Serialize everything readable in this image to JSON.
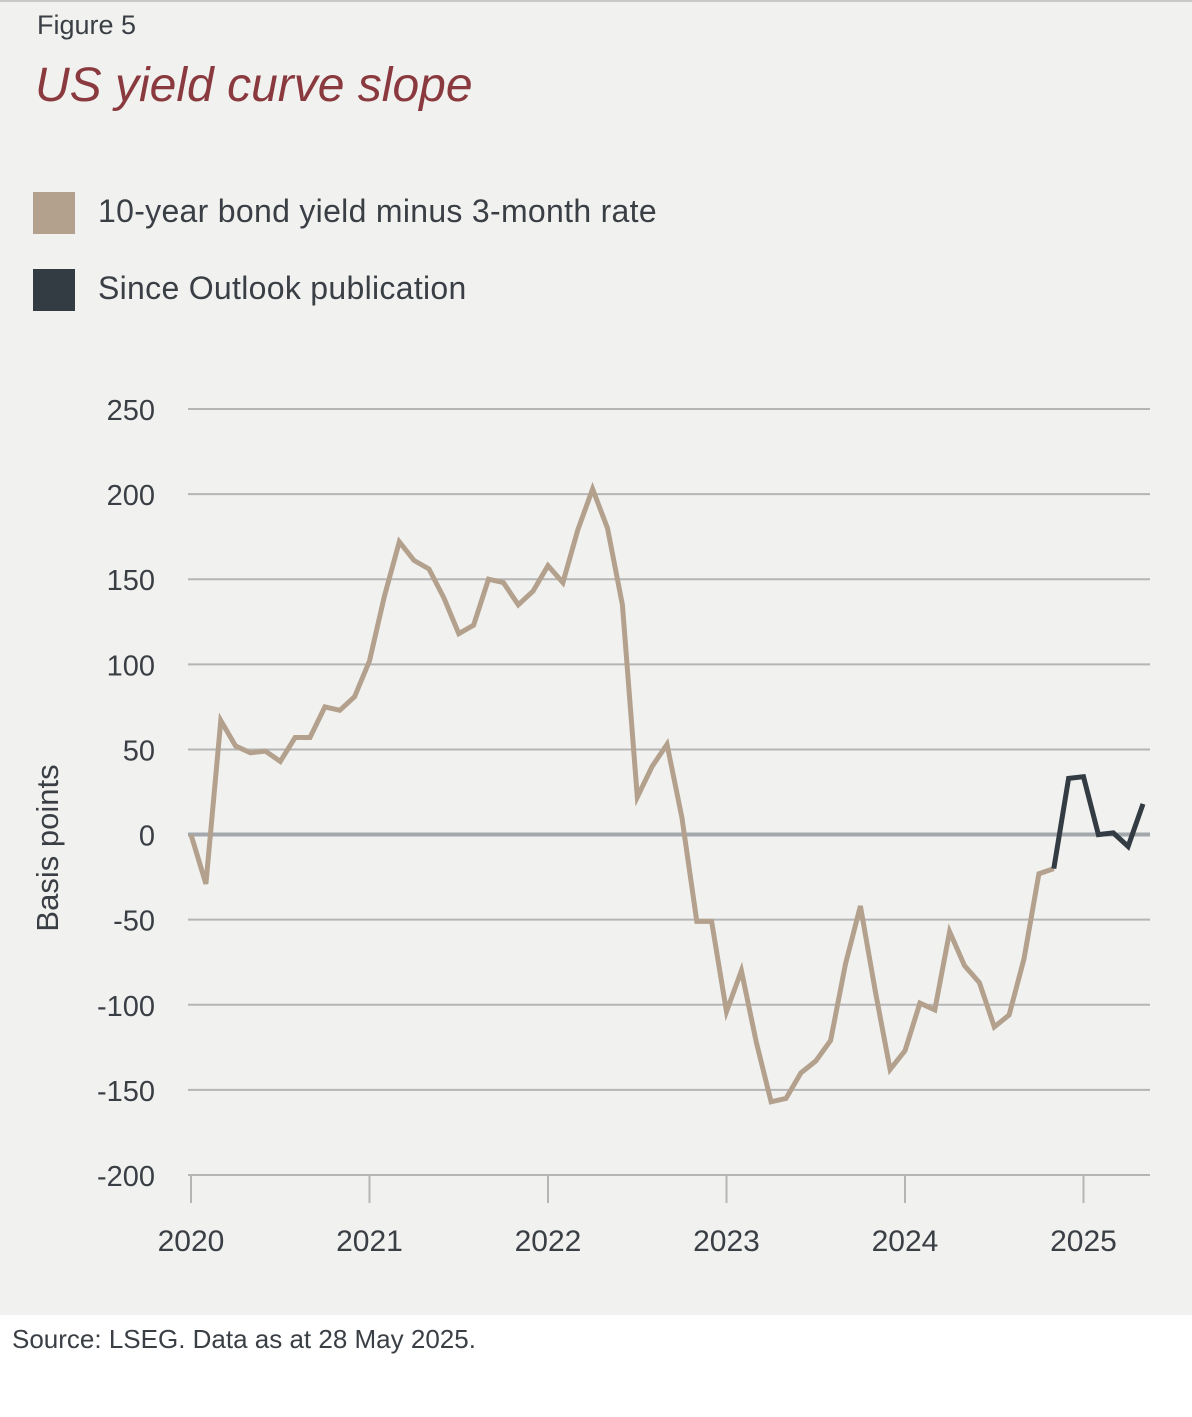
{
  "figure_label": "Figure 5",
  "title": "US yield curve slope",
  "legend": [
    {
      "label": "10-year bond yield minus 3-month rate",
      "color": "#b3a18d"
    },
    {
      "label": "Since Outlook publication",
      "color": "#333b43"
    }
  ],
  "source": "Source: LSEG. Data as at 28 May 2025.",
  "colors": {
    "title": "#8a3a3e",
    "grid": "#b5b5b5",
    "zero_line": "#a3a8ad"
  },
  "chart_data": {
    "type": "line",
    "ylabel": "Basis points",
    "ylim": [
      -200,
      250
    ],
    "yticks": [
      250,
      200,
      150,
      100,
      50,
      0,
      -50,
      -100,
      -150,
      -200
    ],
    "xticks": [
      {
        "label": "2020",
        "x": "2020-01"
      },
      {
        "label": "2021",
        "x": "2021-01"
      },
      {
        "label": "2022",
        "x": "2022-01"
      },
      {
        "label": "2023",
        "x": "2023-01"
      },
      {
        "label": "2024",
        "x": "2024-01"
      },
      {
        "label": "2025",
        "x": "2025-01"
      }
    ],
    "grid": true,
    "series": [
      {
        "name": "10-year bond yield minus 3-month rate",
        "color": "#b3a18d",
        "points": [
          [
            "2020-01",
            0
          ],
          [
            "2020-02",
            -29
          ],
          [
            "2020-03",
            67
          ],
          [
            "2020-04",
            52
          ],
          [
            "2020-05",
            48
          ],
          [
            "2020-06",
            49
          ],
          [
            "2020-07",
            43
          ],
          [
            "2020-08",
            57
          ],
          [
            "2020-09",
            57
          ],
          [
            "2020-10",
            75
          ],
          [
            "2020-11",
            73
          ],
          [
            "2020-12",
            81
          ],
          [
            "2021-01",
            102
          ],
          [
            "2021-02",
            140
          ],
          [
            "2021-03",
            172
          ],
          [
            "2021-04",
            161
          ],
          [
            "2021-05",
            156
          ],
          [
            "2021-06",
            139
          ],
          [
            "2021-07",
            118
          ],
          [
            "2021-08",
            123
          ],
          [
            "2021-09",
            150
          ],
          [
            "2021-10",
            148
          ],
          [
            "2021-11",
            135
          ],
          [
            "2021-12",
            143
          ],
          [
            "2022-01",
            158
          ],
          [
            "2022-02",
            148
          ],
          [
            "2022-03",
            179
          ],
          [
            "2022-04",
            203
          ],
          [
            "2022-05",
            180
          ],
          [
            "2022-06",
            135
          ],
          [
            "2022-07",
            22
          ],
          [
            "2022-08",
            40
          ],
          [
            "2022-09",
            53
          ],
          [
            "2022-10",
            10
          ],
          [
            "2022-11",
            -51
          ],
          [
            "2022-12",
            -51
          ],
          [
            "2023-01",
            -104
          ],
          [
            "2023-02",
            -80
          ],
          [
            "2023-03",
            -122
          ],
          [
            "2023-04",
            -157
          ],
          [
            "2023-05",
            -155
          ],
          [
            "2023-06",
            -140
          ],
          [
            "2023-07",
            -133
          ],
          [
            "2023-08",
            -121
          ],
          [
            "2023-09",
            -76
          ],
          [
            "2023-10",
            -42
          ],
          [
            "2023-11",
            -92
          ],
          [
            "2023-12",
            -138
          ],
          [
            "2024-01",
            -127
          ],
          [
            "2024-02",
            -99
          ],
          [
            "2024-03",
            -103
          ],
          [
            "2024-04",
            -57
          ],
          [
            "2024-05",
            -77
          ],
          [
            "2024-06",
            -87
          ],
          [
            "2024-07",
            -113
          ],
          [
            "2024-08",
            -106
          ],
          [
            "2024-09",
            -73
          ],
          [
            "2024-10",
            -23
          ],
          [
            "2024-11",
            -20
          ]
        ]
      },
      {
        "name": "Since Outlook publication",
        "color": "#333b43",
        "points": [
          [
            "2024-11",
            -20
          ],
          [
            "2024-12",
            33
          ],
          [
            "2025-01",
            34
          ],
          [
            "2025-02",
            0
          ],
          [
            "2025-03",
            1
          ],
          [
            "2025-04",
            -7
          ],
          [
            "2025-05",
            18
          ]
        ]
      }
    ]
  }
}
